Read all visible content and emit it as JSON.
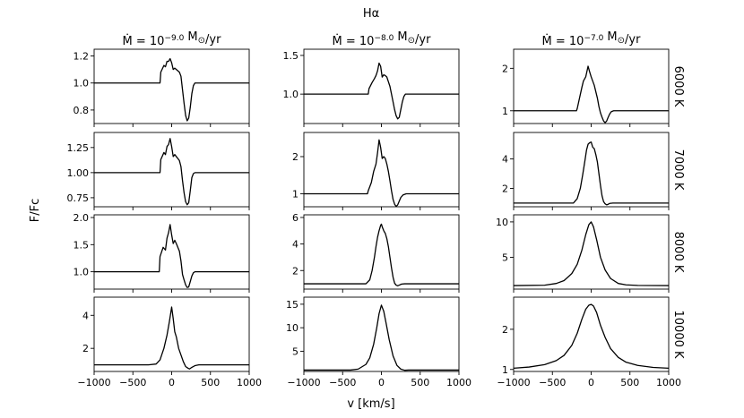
{
  "chart_data": {
    "type": "line",
    "title": "Hα",
    "xlabel": "v [km/s]",
    "ylabel": "F/Fc",
    "xlim": [
      -1000,
      1000
    ],
    "xticks": [
      -1000,
      -500,
      0,
      500,
      1000
    ],
    "column_titles": [
      {
        "prefix": "Ṁ = 10",
        "exp": "−9.0",
        "unit": " M",
        "sub": "⊙",
        "tail": "/yr"
      },
      {
        "prefix": "Ṁ = 10",
        "exp": "−8.0",
        "unit": " M",
        "sub": "⊙",
        "tail": "/yr"
      },
      {
        "prefix": "Ṁ = 10",
        "exp": "−7.0",
        "unit": " M",
        "sub": "⊙",
        "tail": "/yr"
      }
    ],
    "row_labels": [
      "6000 K",
      "7000 K",
      "8000 K",
      "10000 K"
    ],
    "panels": [
      [
        {
          "ylim": [
            0.7,
            1.25
          ],
          "yticks": [
            0.8,
            1.0,
            1.2
          ],
          "ytick_labels": [
            "0.8",
            "1.0",
            "1.2"
          ],
          "x": [
            -1000,
            -150,
            -140,
            -100,
            -80,
            -60,
            -40,
            -20,
            0,
            20,
            40,
            60,
            80,
            100,
            120,
            140,
            160,
            180,
            200,
            220,
            240,
            260,
            280,
            300,
            1000
          ],
          "y": [
            1.0,
            1.0,
            1.08,
            1.13,
            1.12,
            1.16,
            1.16,
            1.18,
            1.15,
            1.1,
            1.11,
            1.1,
            1.09,
            1.08,
            1.05,
            0.95,
            0.85,
            0.76,
            0.72,
            0.74,
            0.82,
            0.92,
            0.98,
            1.0,
            1.0
          ]
        },
        {
          "ylim": [
            0.66,
            1.4
          ],
          "yticks": [
            0.75,
            1.0,
            1.25
          ],
          "ytick_labels": [
            "0.75",
            "1.00",
            "1.25"
          ],
          "x": [
            -1000,
            -150,
            -140,
            -100,
            -80,
            -60,
            -40,
            -20,
            0,
            20,
            40,
            60,
            80,
            100,
            120,
            140,
            160,
            180,
            200,
            220,
            240,
            260,
            280,
            300,
            1000
          ],
          "y": [
            1.0,
            1.0,
            1.13,
            1.2,
            1.18,
            1.26,
            1.28,
            1.34,
            1.26,
            1.16,
            1.18,
            1.16,
            1.14,
            1.12,
            1.06,
            0.92,
            0.8,
            0.71,
            0.68,
            0.7,
            0.82,
            0.95,
            0.99,
            1.0,
            1.0
          ]
        },
        {
          "ylim": [
            0.68,
            2.05
          ],
          "yticks": [
            1.0,
            1.5,
            2.0
          ],
          "ytick_labels": [
            "1.0",
            "1.5",
            "2.0"
          ],
          "x": [
            -1000,
            -160,
            -150,
            -110,
            -80,
            -60,
            -40,
            -20,
            0,
            20,
            40,
            60,
            80,
            100,
            120,
            140,
            160,
            180,
            200,
            220,
            240,
            260,
            280,
            300,
            1000
          ],
          "y": [
            1.0,
            1.0,
            1.28,
            1.45,
            1.4,
            1.62,
            1.72,
            1.87,
            1.68,
            1.52,
            1.58,
            1.52,
            1.45,
            1.38,
            1.2,
            0.95,
            0.85,
            0.76,
            0.71,
            0.72,
            0.82,
            0.92,
            0.98,
            1.0,
            1.0
          ]
        },
        {
          "ylim": [
            0.6,
            5.1
          ],
          "yticks": [
            2,
            4
          ],
          "ytick_labels": [
            "2",
            "4"
          ],
          "x": [
            -1000,
            -300,
            -200,
            -150,
            -100,
            -60,
            -30,
            0,
            20,
            40,
            60,
            90,
            120,
            150,
            180,
            210,
            230,
            260,
            300,
            350,
            1000
          ],
          "y": [
            1.0,
            1.0,
            1.05,
            1.3,
            2.0,
            2.8,
            3.6,
            4.5,
            3.8,
            3.0,
            2.7,
            2.0,
            1.6,
            1.2,
            0.9,
            0.8,
            0.75,
            0.85,
            0.95,
            1.0,
            1.0
          ]
        }
      ],
      [
        {
          "ylim": [
            0.62,
            1.58
          ],
          "yticks": [
            1.0,
            1.5
          ],
          "ytick_labels": [
            "1.0",
            "1.5"
          ],
          "x": [
            -1000,
            -170,
            -160,
            -120,
            -90,
            -70,
            -50,
            -30,
            -10,
            10,
            30,
            50,
            70,
            90,
            110,
            130,
            150,
            170,
            190,
            210,
            230,
            250,
            270,
            290,
            310,
            1000
          ],
          "y": [
            1.0,
            1.0,
            1.07,
            1.15,
            1.2,
            1.24,
            1.3,
            1.4,
            1.36,
            1.22,
            1.25,
            1.24,
            1.22,
            1.16,
            1.1,
            1.0,
            0.9,
            0.8,
            0.72,
            0.68,
            0.7,
            0.8,
            0.9,
            0.97,
            1.0,
            1.0
          ]
        },
        {
          "ylim": [
            0.65,
            2.65
          ],
          "yticks": [
            1,
            2
          ],
          "ytick_labels": [
            "1",
            "2"
          ],
          "x": [
            -1000,
            -180,
            -170,
            -130,
            -100,
            -70,
            -50,
            -30,
            -10,
            10,
            30,
            50,
            70,
            90,
            110,
            130,
            150,
            170,
            190,
            210,
            230,
            250,
            280,
            320,
            1000
          ],
          "y": [
            1.0,
            1.0,
            1.08,
            1.3,
            1.6,
            1.8,
            2.1,
            2.45,
            2.25,
            1.95,
            2.0,
            1.95,
            1.8,
            1.6,
            1.35,
            1.08,
            0.85,
            0.72,
            0.66,
            0.7,
            0.8,
            0.9,
            0.97,
            1.0,
            1.0
          ]
        },
        {
          "ylim": [
            0.6,
            6.2
          ],
          "yticks": [
            2,
            4,
            6
          ],
          "ytick_labels": [
            "2",
            "4",
            "6"
          ],
          "x": [
            -1000,
            -200,
            -150,
            -120,
            -90,
            -70,
            -50,
            -30,
            -10,
            0,
            10,
            30,
            50,
            70,
            90,
            110,
            130,
            150,
            170,
            190,
            210,
            230,
            260,
            300,
            1000
          ],
          "y": [
            1.0,
            1.0,
            1.3,
            2.0,
            3.0,
            3.8,
            4.5,
            5.0,
            5.4,
            5.5,
            5.3,
            5.0,
            4.8,
            4.4,
            3.8,
            3.0,
            2.2,
            1.5,
            1.05,
            0.9,
            0.85,
            0.9,
            0.98,
            1.0,
            1.0
          ]
        },
        {
          "ylim": [
            0.7,
            16.5
          ],
          "yticks": [
            5,
            10,
            15
          ],
          "ytick_labels": [
            "5",
            "10",
            "15"
          ],
          "x": [
            -1000,
            -400,
            -300,
            -200,
            -150,
            -100,
            -60,
            -30,
            0,
            30,
            60,
            100,
            150,
            200,
            250,
            300,
            350,
            400,
            1000
          ],
          "y": [
            1.0,
            1.0,
            1.2,
            2.2,
            3.6,
            6.5,
            10.0,
            13.0,
            14.8,
            13.5,
            11.0,
            7.5,
            4.0,
            2.0,
            1.2,
            0.95,
            1.0,
            1.0,
            1.0
          ]
        }
      ],
      [
        {
          "ylim": [
            0.7,
            2.45
          ],
          "yticks": [
            1,
            2
          ],
          "ytick_labels": [
            "1",
            "2"
          ],
          "x": [
            -1000,
            -190,
            -180,
            -150,
            -120,
            -100,
            -70,
            -40,
            -20,
            0,
            20,
            40,
            60,
            80,
            100,
            120,
            140,
            160,
            180,
            200,
            220,
            240,
            260,
            290,
            1000
          ],
          "y": [
            1.0,
            1.0,
            1.05,
            1.3,
            1.55,
            1.7,
            1.8,
            2.05,
            1.92,
            1.8,
            1.7,
            1.6,
            1.45,
            1.3,
            1.1,
            0.95,
            0.85,
            0.76,
            0.72,
            0.76,
            0.85,
            0.93,
            0.98,
            1.0,
            1.0
          ]
        },
        {
          "ylim": [
            0.75,
            5.8
          ],
          "yticks": [
            2,
            4
          ],
          "ytick_labels": [
            "2",
            "4"
          ],
          "x": [
            -1000,
            -230,
            -180,
            -140,
            -110,
            -80,
            -60,
            -40,
            -20,
            0,
            20,
            40,
            60,
            80,
            100,
            120,
            140,
            160,
            180,
            200,
            220,
            240,
            280,
            1000
          ],
          "y": [
            1.0,
            1.0,
            1.3,
            2.0,
            2.9,
            3.9,
            4.6,
            5.0,
            5.1,
            5.15,
            4.8,
            4.7,
            4.3,
            3.8,
            3.0,
            2.2,
            1.5,
            1.1,
            0.95,
            0.88,
            0.92,
            0.98,
            1.0,
            1.0
          ]
        },
        {
          "ylim": [
            0.5,
            11.0
          ],
          "yticks": [
            5,
            10
          ],
          "ytick_labels": [
            "5",
            "10"
          ],
          "x": [
            -1000,
            -600,
            -450,
            -350,
            -250,
            -180,
            -120,
            -70,
            -30,
            0,
            30,
            70,
            120,
            180,
            250,
            350,
            450,
            600,
            1000
          ],
          "y": [
            1.0,
            1.05,
            1.3,
            1.7,
            2.7,
            4.0,
            6.0,
            8.2,
            9.6,
            10.0,
            9.3,
            7.5,
            5.0,
            3.2,
            2.0,
            1.3,
            1.1,
            1.02,
            1.0
          ]
        },
        {
          "ylim": [
            0.95,
            2.8
          ],
          "yticks": [
            1,
            2
          ],
          "ytick_labels": [
            "1",
            "2"
          ],
          "x": [
            -1000,
            -800,
            -600,
            -450,
            -350,
            -250,
            -180,
            -120,
            -70,
            -30,
            0,
            30,
            70,
            120,
            180,
            250,
            350,
            450,
            600,
            800,
            1000
          ],
          "y": [
            1.03,
            1.06,
            1.12,
            1.22,
            1.35,
            1.6,
            1.9,
            2.25,
            2.5,
            2.6,
            2.62,
            2.58,
            2.42,
            2.1,
            1.8,
            1.52,
            1.3,
            1.18,
            1.1,
            1.05,
            1.03
          ]
        }
      ]
    ]
  }
}
